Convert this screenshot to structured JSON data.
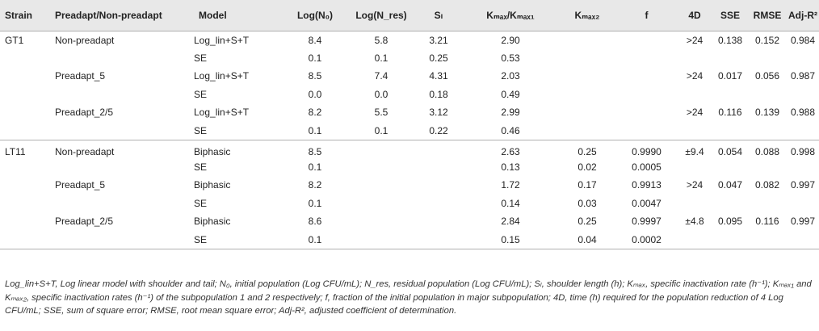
{
  "header": {
    "strain": "Strain",
    "preadapt": "Preadapt/Non-preadapt",
    "model": "Model",
    "logN0": "Log(N₀)",
    "logNres": "Log(N_res)",
    "sl": "Sₗ",
    "kmax": "Kₘₐₓ/Kₘₐₓ₁",
    "kmax2": "Kₘₐₓ₂",
    "f": "f",
    "fourD": "4D",
    "sse": "SSE",
    "rmse": "RMSE",
    "adjr2": "Adj-R²"
  },
  "rows": [
    {
      "strain": "GT1",
      "preadapt": "Non-preadapt",
      "model": "Log_lin+S+T",
      "logN0": "8.4",
      "logNres": "5.8",
      "sl": "3.21",
      "kmax": "2.90",
      "kmax2": "",
      "f": "",
      "d4": ">24",
      "sse": "0.138",
      "rmse": "0.152",
      "adjr2": "0.984"
    },
    {
      "strain": "",
      "preadapt": "",
      "model": "SE",
      "logN0": "0.1",
      "logNres": "0.1",
      "sl": "0.25",
      "kmax": "0.53",
      "kmax2": "",
      "f": "",
      "d4": "",
      "sse": "",
      "rmse": "",
      "adjr2": ""
    },
    {
      "strain": "",
      "preadapt": "Preadapt_5",
      "model": "Log_lin+S+T",
      "logN0": "8.5",
      "logNres": "7.4",
      "sl": "4.31",
      "kmax": "2.03",
      "kmax2": "",
      "f": "",
      "d4": ">24",
      "sse": "0.017",
      "rmse": "0.056",
      "adjr2": "0.987"
    },
    {
      "strain": "",
      "preadapt": "",
      "model": "SE",
      "logN0": "0.0",
      "logNres": "0.0",
      "sl": "0.18",
      "kmax": "0.49",
      "kmax2": "",
      "f": "",
      "d4": "",
      "sse": "",
      "rmse": "",
      "adjr2": ""
    },
    {
      "strain": "",
      "preadapt": "Preadapt_2/5",
      "model": "Log_lin+S+T",
      "logN0": "8.2",
      "logNres": "5.5",
      "sl": "3.12",
      "kmax": "2.99",
      "kmax2": "",
      "f": "",
      "d4": ">24",
      "sse": "0.116",
      "rmse": "0.139",
      "adjr2": "0.988"
    },
    {
      "strain": "",
      "preadapt": "",
      "model": "SE",
      "logN0": "0.1",
      "logNres": "0.1",
      "sl": "0.22",
      "kmax": "0.46",
      "kmax2": "",
      "f": "",
      "d4": "",
      "sse": "",
      "rmse": "",
      "adjr2": ""
    },
    {
      "strain": "LT11",
      "preadapt": "Non-preadapt",
      "model": "Biphasic",
      "logN0": "8.5",
      "logNres": "",
      "sl": "",
      "kmax": "2.63",
      "kmax2": "0.25",
      "f": "0.9990",
      "d4": "±9.4",
      "sse": "0.054",
      "rmse": "0.088",
      "adjr2": "0.998"
    },
    {
      "strain": "",
      "preadapt": "",
      "model": "SE",
      "logN0": "0.1",
      "logNres": "",
      "sl": "",
      "kmax": "0.13",
      "kmax2": "0.02",
      "f": "0.0005",
      "d4": "",
      "sse": "",
      "rmse": "",
      "adjr2": ""
    },
    {
      "strain": "",
      "preadapt": "Preadapt_5",
      "model": "Biphasic",
      "logN0": "8.2",
      "logNres": "",
      "sl": "",
      "kmax": "1.72",
      "kmax2": "0.17",
      "f": "0.9913",
      "d4": ">24",
      "sse": "0.047",
      "rmse": "0.082",
      "adjr2": "0.997"
    },
    {
      "strain": "",
      "preadapt": "",
      "model": "SE",
      "logN0": "0.1",
      "logNres": "",
      "sl": "",
      "kmax": "0.14",
      "kmax2": "0.03",
      "f": "0.0047",
      "d4": "",
      "sse": "",
      "rmse": "",
      "adjr2": ""
    },
    {
      "strain": "",
      "preadapt": "Preadapt_2/5",
      "model": "Biphasic",
      "logN0": "8.6",
      "logNres": "",
      "sl": "",
      "kmax": "2.84",
      "kmax2": "0.25",
      "f": "0.9997",
      "d4": "±4.8",
      "sse": "0.095",
      "rmse": "0.116",
      "adjr2": "0.997"
    },
    {
      "strain": "",
      "preadapt": "",
      "model": "SE",
      "logN0": "0.1",
      "logNres": "",
      "sl": "",
      "kmax": "0.15",
      "kmax2": "0.04",
      "f": "0.0002",
      "d4": "",
      "sse": "",
      "rmse": "",
      "adjr2": ""
    }
  ],
  "footnote": "Log_lin+S+T, Log linear model with shoulder and tail; N₀, initial population (Log CFU/mL); N_res, residual population (Log CFU/mL); Sₗ, shoulder length (h); Kₘₐₓ, specific inactivation rate (h⁻¹); Kₘₐₓ₁ and Kₘₐₓ₂, specific inactivation rates (h⁻¹) of the subpopulation 1 and 2 respectively; f, fraction of the initial population in major subpopulation; 4D, time (h) required for the population reduction of 4 Log CFU/mL; SSE, sum of square error; RMSE, root mean square error; Adj-R², adjusted coefficient of determination.",
  "colors": {
    "header_bg": "#e8e8e8",
    "rule": "#b0b0b0",
    "text": "#222222"
  }
}
